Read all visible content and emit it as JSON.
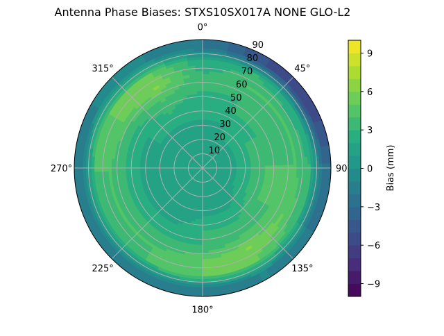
{
  "chart_data": {
    "type": "heatmap",
    "subtype": "polar-filled-contour",
    "title": "Antenna Phase Biases: STXS10SX017A    NONE GLO-L2",
    "colorbar_label": "Bias (mm)",
    "colormap": "viridis",
    "color_range": [
      -10,
      10
    ],
    "contour_level_step": 1,
    "colorbar_ticks": [
      "−9",
      "−6",
      "−3",
      "0",
      "3",
      "6",
      "9"
    ],
    "colorbar_tick_values": [
      -9,
      -6,
      -3,
      0,
      3,
      6,
      9
    ],
    "theta_direction": "clockwise",
    "theta_zero": "north",
    "theta_tick_labels": [
      "0°",
      "45°",
      "90°",
      "135°",
      "180°",
      "225°",
      "270°",
      "315°"
    ],
    "radial_tick_labels": [
      "10",
      "20",
      "30",
      "40",
      "50",
      "60",
      "70",
      "80",
      "90"
    ],
    "radial_range": [
      0,
      90
    ],
    "grid": true,
    "zenith_samples": [
      5,
      15,
      25,
      35,
      45,
      55,
      65,
      75,
      85
    ],
    "azimuth_samples": [
      0,
      30,
      60,
      90,
      120,
      150,
      180,
      210,
      240,
      270,
      300,
      330
    ],
    "values": [
      [
        1,
        1,
        1,
        1,
        1,
        1,
        1,
        1,
        1,
        1,
        1,
        1
      ],
      [
        1,
        1,
        1,
        1,
        1,
        1,
        1,
        1,
        1,
        1,
        1,
        1
      ],
      [
        1,
        2,
        2,
        2,
        2,
        1,
        1,
        1,
        1,
        1,
        1,
        1
      ],
      [
        2,
        2,
        3,
        3,
        3,
        2,
        2,
        1,
        1,
        1,
        2,
        2
      ],
      [
        2,
        3,
        3,
        4,
        4,
        3,
        3,
        2,
        2,
        2,
        2,
        3
      ],
      [
        3,
        3,
        3,
        4,
        4,
        4,
        3,
        3,
        3,
        3,
        3,
        4
      ],
      [
        3,
        4,
        4,
        4,
        5,
        6,
        5,
        4,
        4,
        4,
        5,
        6
      ],
      [
        2,
        3,
        2,
        3,
        3,
        5,
        5,
        4,
        3,
        4,
        5,
        5
      ],
      [
        -2,
        -5,
        -6,
        -3,
        -2,
        -1,
        -2,
        -2,
        -2,
        -2,
        -1,
        -1
      ]
    ]
  }
}
